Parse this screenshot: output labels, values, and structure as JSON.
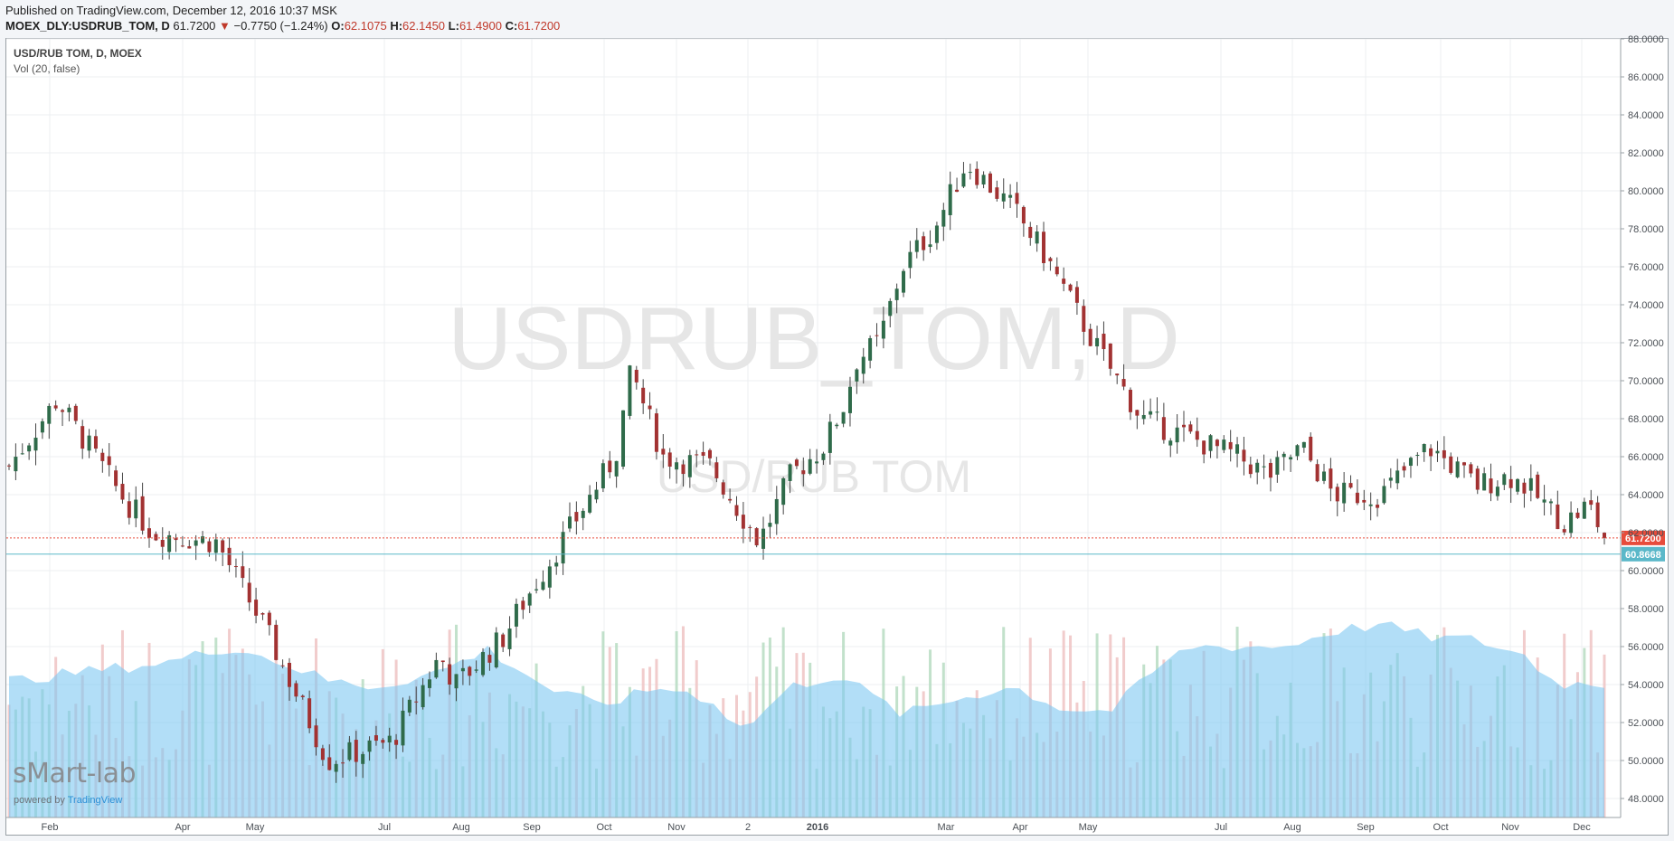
{
  "header": {
    "published": "Published on TradingView.com, December 12, 2016 10:37 MSK",
    "symbol": "MOEX_DLY:USDRUB_TOM, D",
    "last": "61.7200",
    "change_arrow": "▼",
    "change": "−0.7750 (−1.24%)",
    "o_label": "O:",
    "o_value": "62.1075",
    "h_label": "H:",
    "h_value": "62.1450",
    "l_label": "L:",
    "l_value": "61.4900",
    "c_label": "C:",
    "c_value": "61.7200"
  },
  "legend": {
    "title": "USD/RUB TOM, D, MOEX",
    "volume": "Vol (20, false)"
  },
  "watermark": {
    "main": "USDRUB_TOM, D",
    "sub": "USD/RUB TOM"
  },
  "branding": {
    "logo": "sMart-lab",
    "powered_prefix": "powered by ",
    "powered_brand": "TradingView"
  },
  "colors": {
    "up": "#2f6b4a",
    "down": "#a23232",
    "volume_ma": "#7ec8f2",
    "last_price_line": "#e74c3c",
    "level_line": "#5bb8c9"
  },
  "chart_data": {
    "type": "candlestick",
    "period": "D",
    "ylim": [
      47,
      88
    ],
    "yticks": [
      "48.0000",
      "50.0000",
      "52.0000",
      "54.0000",
      "56.0000",
      "58.0000",
      "60.0000",
      "62.0000",
      "64.0000",
      "66.0000",
      "68.0000",
      "70.0000",
      "72.0000",
      "74.0000",
      "76.0000",
      "78.0000",
      "80.0000",
      "82.0000",
      "84.0000",
      "86.0000",
      "88.0000"
    ],
    "xticks": [
      "Feb",
      "Apr",
      "May",
      "Jul",
      "Aug",
      "Sep",
      "Oct",
      "Nov",
      "2",
      "2016",
      "Mar",
      "Apr",
      "May",
      "Jul",
      "Aug",
      "Sep",
      "Oct",
      "Nov",
      "Dec"
    ],
    "last_price": "61.7200",
    "level_price": "60.8668",
    "path_x": [
      0,
      0.03,
      0.07,
      0.09,
      0.13,
      0.16,
      0.18,
      0.2,
      0.24,
      0.27,
      0.28,
      0.31,
      0.32,
      0.35,
      0.38,
      0.39,
      0.41,
      0.44,
      0.47,
      0.49,
      0.51,
      0.525,
      0.53,
      0.545,
      0.56,
      0.58,
      0.6,
      0.63,
      0.65,
      0.68,
      0.71,
      0.74,
      0.77,
      0.79,
      0.81,
      0.83,
      0.86,
      0.89,
      0.92,
      0.94,
      0.95,
      0.975,
      0.99,
      1
    ],
    "path_y": [
      65.5,
      69,
      64,
      62,
      61.5,
      57,
      53.5,
      50,
      51,
      55.5,
      54,
      56.5,
      58,
      62,
      66,
      70.5,
      66,
      65.5,
      61.5,
      65,
      66.5,
      69,
      71,
      72,
      76,
      78,
      81.5,
      79,
      76.5,
      72,
      68,
      67,
      66,
      65,
      66.5,
      64,
      64,
      66.5,
      64.5,
      65,
      64.5,
      62.5,
      63.5,
      61.72
    ],
    "volume_ma_x": [
      0,
      0.05,
      0.1,
      0.14,
      0.17,
      0.2,
      0.23,
      0.27,
      0.3,
      0.34,
      0.37,
      0.41,
      0.44,
      0.46,
      0.49,
      0.52,
      0.56,
      0.6,
      0.63,
      0.66,
      0.69,
      0.72,
      0.74,
      0.77,
      0.8,
      0.83,
      0.86,
      0.89,
      0.92,
      0.95,
      0.97,
      1
    ],
    "volume_ma_rel": [
      0.44,
      0.47,
      0.5,
      0.55,
      0.5,
      0.44,
      0.42,
      0.47,
      0.54,
      0.41,
      0.36,
      0.42,
      0.38,
      0.28,
      0.42,
      0.46,
      0.33,
      0.39,
      0.42,
      0.35,
      0.34,
      0.48,
      0.55,
      0.55,
      0.55,
      0.6,
      0.62,
      0.58,
      0.57,
      0.52,
      0.43,
      0.43
    ]
  }
}
